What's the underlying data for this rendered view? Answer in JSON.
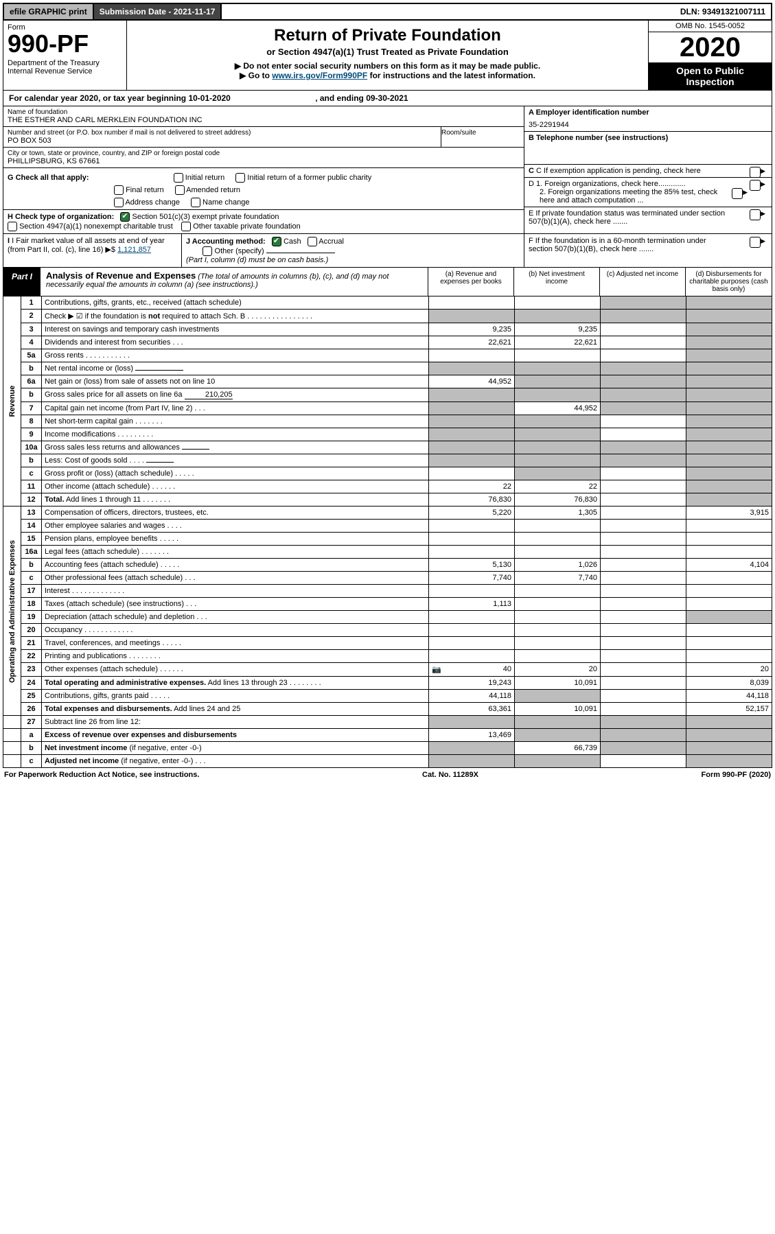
{
  "topbar": {
    "efile_prefix": "efile",
    "efile_suffix": "GRAPHIC print",
    "submission_label": "Submission Date - ",
    "submission_date": "2021-11-17",
    "dln_label": "DLN: ",
    "dln": "93491321007111"
  },
  "header": {
    "form_word": "Form",
    "form_no": "990-PF",
    "dept": "Department of the Treasury",
    "irs": "Internal Revenue Service",
    "title": "Return of Private Foundation",
    "subtitle": "or Section 4947(a)(1) Trust Treated as Private Foundation",
    "warn": "▶ Do not enter social security numbers on this form as it may be made public.",
    "goto_prefix": "▶ Go to ",
    "goto_link": "www.irs.gov/Form990PF",
    "goto_suffix": " for instructions and the latest information.",
    "omb": "OMB No. 1545-0052",
    "year": "2020",
    "open": "Open to Public Inspection"
  },
  "calyear": {
    "prefix": "For calendar year 2020, or tax year beginning ",
    "begin": "10-01-2020",
    "mid": " , and ending ",
    "end": "09-30-2021"
  },
  "foundation": {
    "name_label": "Name of foundation",
    "name": "THE ESTHER AND CARL MERKLEIN FOUNDATION INC",
    "addr_label": "Number and street (or P.O. box number if mail is not delivered to street address)",
    "addr": "PO BOX 503",
    "room_label": "Room/suite",
    "city_label": "City or town, state or province, country, and ZIP or foreign postal code",
    "city": "PHILLIPSBURG, KS  67661",
    "ein_label": "A Employer identification number",
    "ein": "35-2291944",
    "phone_label": "B Telephone number (see instructions)",
    "c_label": "C If exemption application is pending, check here",
    "d1": "D 1. Foreign organizations, check here.............",
    "d2": "2. Foreign organizations meeting the 85% test, check here and attach computation ...",
    "e_label": "E  If private foundation status was terminated under section 507(b)(1)(A), check here .......",
    "f_label": "F  If the foundation is in a 60-month termination under section 507(b)(1)(B), check here .......",
    "g_label": "G Check all that apply:",
    "g_opts": {
      "initial": "Initial return",
      "initial_former": "Initial return of a former public charity",
      "final": "Final return",
      "amended": "Amended return",
      "address": "Address change",
      "name": "Name change"
    },
    "h_label": "H Check type of organization:",
    "h_501c3": "Section 501(c)(3) exempt private foundation",
    "h_4947": "Section 4947(a)(1) nonexempt charitable trust",
    "h_other": "Other taxable private foundation",
    "i_label": "I Fair market value of all assets at end of year (from Part II, col. (c), line 16)",
    "i_value": "1,121,857",
    "j_label": "J Accounting method:",
    "j_cash": "Cash",
    "j_accrual": "Accrual",
    "j_other": "Other (specify)",
    "j_note": "(Part I, column (d) must be on cash basis.)"
  },
  "part1": {
    "tag": "Part I",
    "title": "Analysis of Revenue and Expenses",
    "title_note": "(The total of amounts in columns (b), (c), and (d) may not necessarily equal the amounts in column (a) (see instructions).)",
    "col_a": "(a)  Revenue and expenses per books",
    "col_b": "(b)  Net investment income",
    "col_c": "(c)  Adjusted net income",
    "col_d": "(d)  Disbursements for charitable purposes (cash basis only)"
  },
  "sections": {
    "revenue": "Revenue",
    "opadmin": "Operating and Administrative Expenses"
  },
  "rows": [
    {
      "n": "1",
      "d": "Contributions, gifts, grants, etc., received (attach schedule)",
      "a": "",
      "b": "",
      "c": "shade",
      "dcol": "shade"
    },
    {
      "n": "2",
      "d": "Check ▶ ☑ if the foundation is <b>not</b> required to attach Sch. B    .   .   .   .   .   .   .   .   .   .   .   .   .   .   .   .",
      "a": "shade",
      "b": "shade",
      "c": "shade",
      "dcol": "shade"
    },
    {
      "n": "3",
      "d": "Interest on savings and temporary cash investments",
      "a": "9,235",
      "b": "9,235",
      "c": "",
      "dcol": "shade"
    },
    {
      "n": "4",
      "d": "Dividends and interest from securities    .   .   .",
      "a": "22,621",
      "b": "22,621",
      "c": "",
      "dcol": "shade"
    },
    {
      "n": "5a",
      "d": "Gross rents    .   .   .   .   .   .   .   .   .   .   .",
      "a": "",
      "b": "",
      "c": "",
      "dcol": "shade"
    },
    {
      "n": "b",
      "d": "Net rental income or (loss)  <span class='underline-val'></span>",
      "a": "shade",
      "b": "shade",
      "c": "shade",
      "dcol": "shade"
    },
    {
      "n": "6a",
      "d": "Net gain or (loss) from sale of assets not on line 10",
      "a": "44,952",
      "b": "shade",
      "c": "shade",
      "dcol": "shade"
    },
    {
      "n": "b",
      "d": "Gross sales price for all assets on line 6a <span class='underline-val'>210,205</span>",
      "a": "shade",
      "b": "shade",
      "c": "shade",
      "dcol": "shade"
    },
    {
      "n": "7",
      "d": "Capital gain net income (from Part IV, line 2)  .   .   .",
      "a": "shade",
      "b": "44,952",
      "c": "shade",
      "dcol": "shade"
    },
    {
      "n": "8",
      "d": "Net short-term capital gain   .   .   .   .   .   .   .",
      "a": "shade",
      "b": "shade",
      "c": "",
      "dcol": "shade"
    },
    {
      "n": "9",
      "d": "Income modifications  .   .   .   .   .   .   .   .   .",
      "a": "shade",
      "b": "shade",
      "c": "",
      "dcol": "shade"
    },
    {
      "n": "10a",
      "d": "Gross sales less returns and allowances <span class='underline-val' style='min-width:40px'></span>",
      "a": "shade",
      "b": "shade",
      "c": "shade",
      "dcol": "shade"
    },
    {
      "n": "b",
      "d": "Less: Cost of goods sold   .   .   .   .  <span class='underline-val' style='min-width:40px'></span>",
      "a": "shade",
      "b": "shade",
      "c": "shade",
      "dcol": "shade"
    },
    {
      "n": "c",
      "d": "Gross profit or (loss) (attach schedule)    .   .   .   .   .",
      "a": "",
      "b": "shade",
      "c": "",
      "dcol": "shade"
    },
    {
      "n": "11",
      "d": "Other income (attach schedule)    .   .   .   .   .   .",
      "a": "22",
      "b": "22",
      "c": "",
      "dcol": "shade"
    },
    {
      "n": "12",
      "d": "<b>Total.</b> Add lines 1 through 11   .   .   .   .   .   .   .",
      "a": "76,830",
      "b": "76,830",
      "c": "",
      "dcol": "shade"
    }
  ],
  "exp_rows": [
    {
      "n": "13",
      "d": "Compensation of officers, directors, trustees, etc.",
      "a": "5,220",
      "b": "1,305",
      "c": "",
      "dcol": "3,915"
    },
    {
      "n": "14",
      "d": "Other employee salaries and wages   .   .   .   .",
      "a": "",
      "b": "",
      "c": "",
      "dcol": ""
    },
    {
      "n": "15",
      "d": "Pension plans, employee benefits  .   .   .   .   .",
      "a": "",
      "b": "",
      "c": "",
      "dcol": ""
    },
    {
      "n": "16a",
      "d": "Legal fees (attach schedule)  .   .   .   .   .   .   .",
      "a": "",
      "b": "",
      "c": "",
      "dcol": ""
    },
    {
      "n": "b",
      "d": "Accounting fees (attach schedule)  .   .   .   .   .",
      "a": "5,130",
      "b": "1,026",
      "c": "",
      "dcol": "4,104"
    },
    {
      "n": "c",
      "d": "Other professional fees (attach schedule)   .   .   .",
      "a": "7,740",
      "b": "7,740",
      "c": "",
      "dcol": ""
    },
    {
      "n": "17",
      "d": "Interest  .   .   .   .   .   .   .   .   .   .   .   .   .",
      "a": "",
      "b": "",
      "c": "",
      "dcol": ""
    },
    {
      "n": "18",
      "d": "Taxes (attach schedule) (see instructions)    .   .   .",
      "a": "1,113",
      "b": "",
      "c": "",
      "dcol": ""
    },
    {
      "n": "19",
      "d": "Depreciation (attach schedule) and depletion   .   .   .",
      "a": "",
      "b": "",
      "c": "",
      "dcol": "shade"
    },
    {
      "n": "20",
      "d": "Occupancy  .   .   .   .   .   .   .   .   .   .   .   .",
      "a": "",
      "b": "",
      "c": "",
      "dcol": ""
    },
    {
      "n": "21",
      "d": "Travel, conferences, and meetings  .   .   .   .   .",
      "a": "",
      "b": "",
      "c": "",
      "dcol": ""
    },
    {
      "n": "22",
      "d": "Printing and publications  .   .   .   .   .   .   .   .",
      "a": "",
      "b": "",
      "c": "",
      "dcol": ""
    },
    {
      "n": "23",
      "d": "Other expenses (attach schedule)  .   .   .   .   .   .",
      "a": "40",
      "b": "20",
      "c": "",
      "dcol": "20",
      "icon": true
    },
    {
      "n": "24",
      "d": "<b>Total operating and administrative expenses.</b> Add lines 13 through 23   .   .   .   .   .   .   .   .",
      "a": "19,243",
      "b": "10,091",
      "c": "",
      "dcol": "8,039"
    },
    {
      "n": "25",
      "d": "Contributions, gifts, grants paid    .   .   .   .   .",
      "a": "44,118",
      "b": "shade",
      "c": "",
      "dcol": "44,118"
    },
    {
      "n": "26",
      "d": "<b>Total expenses and disbursements.</b> Add lines 24 and 25",
      "a": "63,361",
      "b": "10,091",
      "c": "",
      "dcol": "52,157"
    }
  ],
  "final_rows": [
    {
      "n": "27",
      "d": "Subtract line 26 from line 12:",
      "a": "shade",
      "b": "shade",
      "c": "shade",
      "dcol": "shade"
    },
    {
      "n": "a",
      "d": "<b>Excess of revenue over expenses and disbursements</b>",
      "a": "13,469",
      "b": "shade",
      "c": "shade",
      "dcol": "shade"
    },
    {
      "n": "b",
      "d": "<b>Net investment income</b> (if negative, enter -0-)",
      "a": "shade",
      "b": "66,739",
      "c": "shade",
      "dcol": "shade"
    },
    {
      "n": "c",
      "d": "<b>Adjusted net income</b> (if negative, enter -0-)   .   .   .",
      "a": "shade",
      "b": "shade",
      "c": "",
      "dcol": "shade"
    }
  ],
  "footer": {
    "left": "For Paperwork Reduction Act Notice, see instructions.",
    "mid": "Cat. No. 11289X",
    "right": "Form 990-PF (2020)"
  }
}
